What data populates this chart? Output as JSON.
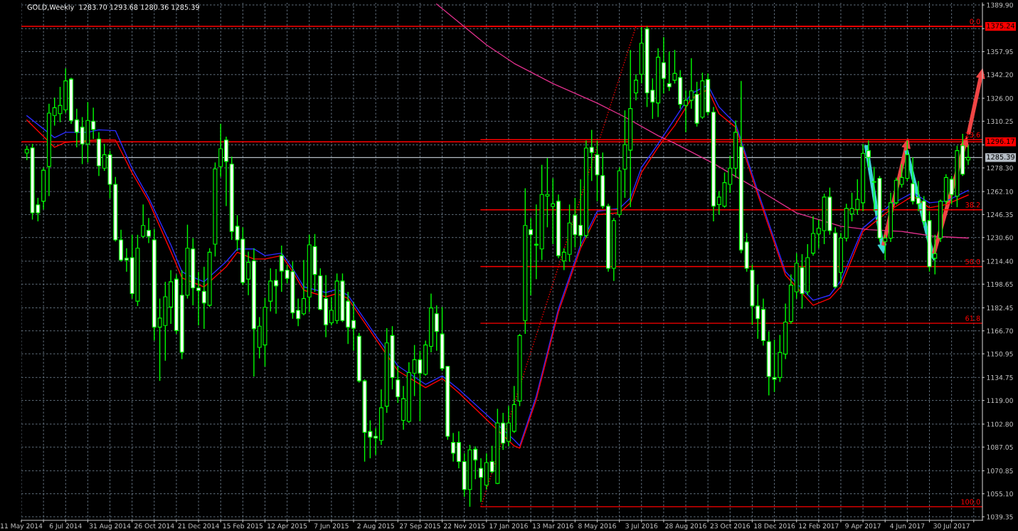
{
  "chart_data": {
    "type": "candlestick",
    "title": "GOLD,Weekly  1283.70 1293.68 1280.36 1285.39",
    "color": "#00ff00",
    "x": [
      "2014-05-18",
      "2014-05-25",
      "2014-06-01",
      "2014-06-08",
      "2014-06-15",
      "2014-06-22",
      "2014-06-29",
      "2014-07-06",
      "2014-07-13",
      "2014-07-20",
      "2014-07-27",
      "2014-08-03",
      "2014-08-10",
      "2014-08-17",
      "2014-08-24",
      "2014-08-31",
      "2014-09-07",
      "2014-09-14",
      "2014-09-21",
      "2014-09-28",
      "2014-10-05",
      "2014-10-12",
      "2014-10-19",
      "2014-10-26",
      "2014-11-02",
      "2014-11-09",
      "2014-11-16",
      "2014-11-23",
      "2014-11-30",
      "2014-12-07",
      "2014-12-14",
      "2014-12-21",
      "2014-12-28",
      "2015-01-04",
      "2015-01-11",
      "2015-01-18",
      "2015-01-25",
      "2015-02-01",
      "2015-02-08",
      "2015-02-15",
      "2015-02-22",
      "2015-03-01",
      "2015-03-08",
      "2015-03-15",
      "2015-03-22",
      "2015-03-29",
      "2015-04-05",
      "2015-04-12",
      "2015-04-19",
      "2015-04-26",
      "2015-05-03",
      "2015-05-10",
      "2015-05-17",
      "2015-05-24",
      "2015-05-31",
      "2015-06-07",
      "2015-06-14",
      "2015-06-21",
      "2015-06-28",
      "2015-07-05",
      "2015-07-12",
      "2015-07-19",
      "2015-07-26",
      "2015-08-02",
      "2015-08-09",
      "2015-08-16",
      "2015-08-23",
      "2015-08-30",
      "2015-09-06",
      "2015-09-13",
      "2015-09-20",
      "2015-09-27",
      "2015-10-04",
      "2015-10-11",
      "2015-10-18",
      "2015-10-25",
      "2015-11-01",
      "2015-11-08",
      "2015-11-15",
      "2015-11-22",
      "2015-11-29",
      "2015-12-06",
      "2015-12-13",
      "2015-12-20",
      "2015-12-27",
      "2016-01-03",
      "2016-01-10",
      "2016-01-17",
      "2016-01-24",
      "2016-01-31",
      "2016-02-07",
      "2016-02-14",
      "2016-02-21",
      "2016-02-28",
      "2016-03-06",
      "2016-03-13",
      "2016-03-20",
      "2016-03-27",
      "2016-04-03",
      "2016-04-10",
      "2016-04-17",
      "2016-04-24",
      "2016-05-01",
      "2016-05-08",
      "2016-05-15",
      "2016-05-22",
      "2016-05-29",
      "2016-06-05",
      "2016-06-12",
      "2016-06-19",
      "2016-06-26",
      "2016-07-03",
      "2016-07-10",
      "2016-07-17",
      "2016-07-24",
      "2016-07-31",
      "2016-08-07",
      "2016-08-14",
      "2016-08-21",
      "2016-08-28",
      "2016-09-04",
      "2016-09-11",
      "2016-09-18",
      "2016-09-25",
      "2016-10-02",
      "2016-10-09",
      "2016-10-16",
      "2016-10-23",
      "2016-10-30",
      "2016-11-06",
      "2016-11-13",
      "2016-11-20",
      "2016-11-27",
      "2016-12-04",
      "2016-12-11",
      "2016-12-18",
      "2016-12-25",
      "2017-01-01",
      "2017-01-08",
      "2017-01-15",
      "2017-01-22",
      "2017-01-29",
      "2017-02-05",
      "2017-02-12",
      "2017-02-19",
      "2017-02-26",
      "2017-03-05",
      "2017-03-12",
      "2017-03-19",
      "2017-03-26",
      "2017-04-02",
      "2017-04-09",
      "2017-04-16",
      "2017-04-23",
      "2017-04-30",
      "2017-05-07",
      "2017-05-14",
      "2017-05-21",
      "2017-05-28",
      "2017-06-04",
      "2017-06-11",
      "2017-06-18",
      "2017-06-25",
      "2017-07-02",
      "2017-07-09",
      "2017-07-16",
      "2017-07-23",
      "2017-07-30",
      "2017-08-06",
      "2017-08-13",
      "2017-08-20"
    ],
    "ohlc": [
      [
        1288.5,
        1293.5,
        1283.6,
        1291
      ],
      [
        1292,
        1294.7,
        1242.9,
        1247.5
      ],
      [
        1253,
        1257.8,
        1241.7,
        1247.5
      ],
      [
        1255.5,
        1278.6,
        1249.8,
        1276.7
      ],
      [
        1279.3,
        1322.3,
        1259,
        1315.8
      ],
      [
        1314.2,
        1326.4,
        1307.3,
        1319.5
      ],
      [
        1315.4,
        1333.8,
        1309.6,
        1321.1
      ],
      [
        1318.1,
        1346.5,
        1316,
        1337.9
      ],
      [
        1339.1,
        1340,
        1308.5,
        1310.8
      ],
      [
        1311.2,
        1318.8,
        1292.4,
        1302.7
      ],
      [
        1306.2,
        1313.1,
        1280.9,
        1294.7
      ],
      [
        1294.7,
        1323.4,
        1282,
        1310.8
      ],
      [
        1310.3,
        1319.5,
        1298.1,
        1304.6
      ],
      [
        1298.1,
        1302.7,
        1272.8,
        1279.7
      ],
      [
        1278.1,
        1294.7,
        1276.3,
        1287.3
      ],
      [
        1287.3,
        1290.1,
        1257.4,
        1267
      ],
      [
        1267,
        1272.1,
        1227.9,
        1229
      ],
      [
        1229,
        1236,
        1214.1,
        1215.2
      ],
      [
        1216.4,
        1223.3,
        1207.2,
        1215.2
      ],
      [
        1216.8,
        1232.5,
        1188.8,
        1192.2
      ],
      [
        1187,
        1232.5,
        1183.7,
        1223.3
      ],
      [
        1231.4,
        1253.2,
        1230.2,
        1238.9
      ],
      [
        1235.5,
        1244,
        1226.8,
        1231.4
      ],
      [
        1229,
        1236.6,
        1160,
        1169.2
      ],
      [
        1169.2,
        1188.8,
        1132.4,
        1175.4
      ],
      [
        1170.4,
        1200.3,
        1146.2,
        1190
      ],
      [
        1183,
        1208.3,
        1171.5,
        1200.3
      ],
      [
        1202.1,
        1205.3,
        1164.6,
        1166.9
      ],
      [
        1191.1,
        1208.3,
        1147.3,
        1152
      ],
      [
        1191.1,
        1239.4,
        1188.8,
        1223.3
      ],
      [
        1222.8,
        1230.2,
        1184.2,
        1196.1
      ],
      [
        1196.1,
        1207.2,
        1170.4,
        1194.3
      ],
      [
        1193.8,
        1210.6,
        1168.1,
        1185.8
      ],
      [
        1184.2,
        1223.3,
        1183,
        1220.5
      ],
      [
        1226.1,
        1282,
        1217.6,
        1277.6
      ],
      [
        1279.2,
        1308.5,
        1272.1,
        1291.4
      ],
      [
        1297.4,
        1299.7,
        1252.1,
        1282.7
      ],
      [
        1280.9,
        1286,
        1229,
        1234.8
      ],
      [
        1238.3,
        1245.9,
        1221.5,
        1229
      ],
      [
        1229.5,
        1237.6,
        1198,
        1199.8
      ],
      [
        1202.1,
        1221,
        1191.1,
        1213.6
      ],
      [
        1214.6,
        1223.3,
        1135.4,
        1168.1
      ],
      [
        1155.4,
        1176.1,
        1147.8,
        1169.9
      ],
      [
        1157,
        1189.3,
        1142.3,
        1182.8
      ],
      [
        1187,
        1209.5,
        1180,
        1200.8
      ],
      [
        1201.2,
        1209,
        1178.4,
        1197.5
      ],
      [
        1218.2,
        1225.1,
        1193.4,
        1207.6
      ],
      [
        1208.3,
        1211.8,
        1199.1,
        1202.6
      ],
      [
        1207.2,
        1214.1,
        1175,
        1179.1
      ],
      [
        1180.7,
        1188.8,
        1169.9,
        1175
      ],
      [
        1178.4,
        1215.2,
        1177.3,
        1188.8
      ],
      [
        1189.9,
        1232.5,
        1179.6,
        1225.6
      ],
      [
        1224.4,
        1233,
        1193.4,
        1205.3
      ],
      [
        1204.4,
        1209.5,
        1180.7,
        1181.4
      ],
      [
        1188.8,
        1204.9,
        1162.3,
        1170.8
      ],
      [
        1172.2,
        1189.9,
        1170.4,
        1180.7
      ],
      [
        1173.8,
        1206,
        1171.5,
        1200.8
      ],
      [
        1200.8,
        1206,
        1172.7,
        1173.8
      ],
      [
        1187,
        1193.4,
        1157.7,
        1169.2
      ],
      [
        1173.8,
        1186.5,
        1153.1,
        1168.5
      ],
      [
        1163,
        1165.3,
        1131.2,
        1132.4
      ],
      [
        1132.4,
        1133.5,
        1077.1,
        1097.2
      ],
      [
        1097.8,
        1105.4,
        1079.4,
        1093.9
      ],
      [
        1094.4,
        1100.2,
        1081.7,
        1093.3
      ],
      [
        1091.6,
        1126.6,
        1088.6,
        1114
      ],
      [
        1115.1,
        1168.5,
        1110.5,
        1158.4
      ],
      [
        1163.5,
        1169.9,
        1126.6,
        1134.7
      ],
      [
        1133.1,
        1142.7,
        1117.4,
        1121.5
      ],
      [
        1105.4,
        1128.9,
        1099,
        1120.2
      ],
      [
        1104.7,
        1145.1,
        1103.6,
        1138.1
      ],
      [
        1137.7,
        1157,
        1122,
        1146.9
      ],
      [
        1146.9,
        1153.1,
        1104.7,
        1137.7
      ],
      [
        1137,
        1160,
        1136,
        1157
      ],
      [
        1156.1,
        1192.2,
        1152,
        1182.4
      ],
      [
        1178.4,
        1184.2,
        1153.1,
        1166.2
      ],
      [
        1164.6,
        1183,
        1139.3,
        1140.9
      ],
      [
        1142.3,
        1142.7,
        1092.1,
        1094.4
      ],
      [
        1090.2,
        1096.7,
        1077.1,
        1082.9
      ],
      [
        1090.2,
        1097.8,
        1072.5,
        1077.1
      ],
      [
        1077.1,
        1082.9,
        1053,
        1058
      ],
      [
        1058,
        1088.6,
        1046.2,
        1085.2
      ],
      [
        1085.6,
        1087.5,
        1065,
        1078.3
      ],
      [
        1072.5,
        1079.4,
        1049.5,
        1066.3
      ],
      [
        1061,
        1082.9,
        1058,
        1076.4
      ],
      [
        1077.1,
        1088,
        1069.1,
        1070.2
      ],
      [
        1062.2,
        1113.3,
        1061.7,
        1103.6
      ],
      [
        1103.6,
        1110.5,
        1085.2,
        1089.8
      ],
      [
        1091,
        1115.1,
        1087.5,
        1103.6
      ],
      [
        1097.9,
        1128.9,
        1096.7,
        1116.2
      ],
      [
        1118.6,
        1164.6,
        1115.1,
        1163.5
      ],
      [
        1173.8,
        1264.3,
        1164.6,
        1238.9
      ],
      [
        1236,
        1244,
        1191.1,
        1232.5
      ],
      [
        1225.4,
        1253.2,
        1202.1,
        1226
      ],
      [
        1222.8,
        1280.4,
        1215.2,
        1260.1
      ],
      [
        1259,
        1285,
        1237.6,
        1260.1
      ],
      [
        1251.9,
        1271.2,
        1226.1,
        1253.7
      ],
      [
        1255.5,
        1260.1,
        1216.4,
        1218.2
      ],
      [
        1214.6,
        1223.3,
        1208.3,
        1220.5
      ],
      [
        1219.1,
        1253.2,
        1214.1,
        1240.6
      ],
      [
        1245.9,
        1257.8,
        1223.8,
        1232.5
      ],
      [
        1239,
        1270.5,
        1224.5,
        1232
      ],
      [
        1232,
        1297,
        1230.2,
        1291.9
      ],
      [
        1292.4,
        1304.3,
        1269.3,
        1288.9
      ],
      [
        1287.3,
        1297,
        1255.5,
        1273.5
      ],
      [
        1273,
        1288.9,
        1250.5,
        1252.1
      ],
      [
        1252.1,
        1253.7,
        1207.2,
        1209.5
      ],
      [
        1209.5,
        1244,
        1200.8,
        1242.2
      ],
      [
        1246.3,
        1278.6,
        1244.5,
        1276.3
      ],
      [
        1277.4,
        1317.7,
        1257.8,
        1294.2
      ],
      [
        1290.5,
        1359.1,
        1251.4,
        1318.9
      ],
      [
        1329.7,
        1342.5,
        1324.6,
        1338.4
      ],
      [
        1342.5,
        1374.8,
        1336.1,
        1363.7
      ],
      [
        1373.4,
        1375.24,
        1320,
        1329.7
      ],
      [
        1331.5,
        1339.6,
        1311.9,
        1323.4
      ],
      [
        1322.8,
        1360.3,
        1313.1,
        1354.1
      ],
      [
        1350.4,
        1367.9,
        1329.2,
        1339.6
      ],
      [
        1336.1,
        1358,
        1331,
        1333.8
      ],
      [
        1338.4,
        1359.1,
        1336.1,
        1343
      ],
      [
        1340.2,
        1345.3,
        1318.8,
        1321.8
      ],
      [
        1321.1,
        1331.5,
        1302.7,
        1324.6
      ],
      [
        1324.6,
        1353.4,
        1318.8,
        1331
      ],
      [
        1328.7,
        1337.3,
        1306.6,
        1308.9
      ],
      [
        1313.1,
        1343.5,
        1311.9,
        1337.9
      ],
      [
        1338.9,
        1343,
        1314.2,
        1316.5
      ],
      [
        1316.5,
        1320,
        1241.7,
        1252.1
      ],
      [
        1253.2,
        1262.4,
        1246.3,
        1258.3
      ],
      [
        1252.1,
        1275.1,
        1251,
        1268.2
      ],
      [
        1267,
        1286.6,
        1261.3,
        1278.1
      ],
      [
        1278.1,
        1310.8,
        1271.7,
        1302.7
      ],
      [
        1292.8,
        1337.9,
        1219.9,
        1222.1
      ],
      [
        1227.5,
        1233.7,
        1207.2,
        1209.5
      ],
      [
        1208.3,
        1212.2,
        1170.8,
        1183.7
      ],
      [
        1183.7,
        1198.4,
        1161.2,
        1175
      ],
      [
        1181.4,
        1188.8,
        1156.6,
        1160
      ],
      [
        1159.3,
        1166.2,
        1122.5,
        1135.4
      ],
      [
        1134.7,
        1160.7,
        1124.8,
        1133.5
      ],
      [
        1134.7,
        1163.9,
        1131.7,
        1151.9
      ],
      [
        1150.8,
        1185.3,
        1147.3,
        1172.7
      ],
      [
        1173.1,
        1205.3,
        1171.5,
        1198
      ],
      [
        1193.4,
        1219.9,
        1188.8,
        1213
      ],
      [
        1210,
        1219.2,
        1181.9,
        1192.2
      ],
      [
        1193.4,
        1226.1,
        1191.1,
        1216.8
      ],
      [
        1219.9,
        1245.2,
        1218.2,
        1233.4
      ],
      [
        1233,
        1242.9,
        1223.3,
        1236.9
      ],
      [
        1235.3,
        1260.6,
        1226.1,
        1258.3
      ],
      [
        1258.3,
        1264.8,
        1232.5,
        1235.3
      ],
      [
        1233.7,
        1237.6,
        1195.7,
        1196.8
      ],
      [
        1206.7,
        1233.7,
        1199.1,
        1230.2
      ],
      [
        1230.2,
        1253.7,
        1227.9,
        1250.5
      ],
      [
        1246.8,
        1261.3,
        1241.7,
        1250.5
      ],
      [
        1249.8,
        1270.5,
        1246.3,
        1256.7
      ],
      [
        1254.4,
        1294.7,
        1248.6,
        1288.2
      ],
      [
        1290.1,
        1297,
        1278.6,
        1285.5
      ],
      [
        1268.9,
        1279,
        1248.6,
        1268.5
      ],
      [
        1271.2,
        1272.8,
        1227.9,
        1230.2
      ],
      [
        1227.9,
        1232.5,
        1215.2,
        1230.2
      ],
      [
        1230.2,
        1261.3,
        1227.5,
        1254.4
      ],
      [
        1254.4,
        1271.7,
        1253.2,
        1269.8
      ],
      [
        1267,
        1280.9,
        1264.8,
        1271.7
      ],
      [
        1271.2,
        1297,
        1269.3,
        1287.3
      ],
      [
        1267.5,
        1285.5,
        1253.2,
        1255.5
      ],
      [
        1257.8,
        1269.3,
        1248.6,
        1253.7
      ],
      [
        1255.5,
        1259,
        1238.3,
        1241.7
      ],
      [
        1242.2,
        1248.6,
        1207.2,
        1210.6
      ],
      [
        1216.4,
        1232.5,
        1205.3,
        1219.5
      ],
      [
        1230.2,
        1256.7,
        1227.5,
        1255.5
      ],
      [
        1255.5,
        1274,
        1253.2,
        1271.7
      ],
      [
        1270.5,
        1272.8,
        1253.2,
        1260.1
      ],
      [
        1259,
        1293.5,
        1251.4,
        1290.1
      ],
      [
        1293.5,
        1301.6,
        1272.8,
        1274
      ],
      [
        1283.7,
        1293.68,
        1280.36,
        1285.39
      ]
    ],
    "series": [
      {
        "type": "line",
        "color": "#2b2bff",
        "x": [
          "2014-05-18",
          "2014-06-22",
          "2014-07-06",
          "2014-08-03",
          "2014-08-17",
          "2014-09-07",
          "2014-09-28",
          "2014-10-19",
          "2014-11-16",
          "2014-11-30",
          "2014-12-07",
          "2014-12-28",
          "2015-01-25",
          "2015-02-08",
          "2015-03-01",
          "2015-03-15",
          "2015-04-05",
          "2015-04-19",
          "2015-05-03",
          "2015-05-31",
          "2015-06-14",
          "2015-06-28",
          "2015-08-02",
          "2015-08-30",
          "2015-10-04",
          "2015-10-25",
          "2015-11-15",
          "2015-12-27",
          "2016-01-24",
          "2016-01-31",
          "2016-02-21",
          "2016-03-20",
          "2016-04-17",
          "2016-05-08",
          "2016-06-05",
          "2016-06-19",
          "2016-07-03",
          "2016-07-24",
          "2016-08-14",
          "2016-09-04",
          "2016-09-25",
          "2016-10-09",
          "2016-10-30",
          "2016-11-27",
          "2017-01-01",
          "2017-02-05",
          "2017-02-26",
          "2017-03-12",
          "2017-04-09",
          "2017-05-14",
          "2017-06-11",
          "2017-07-02",
          "2017-07-23",
          "2017-08-20"
        ],
        "values": [
          1314,
          1299,
          1302.7,
          1302.7,
          1304.4,
          1303.8,
          1278,
          1257.8,
          1225.6,
          1207.2,
          1205,
          1200.3,
          1214.1,
          1222.8,
          1222.8,
          1218.2,
          1219.9,
          1209.5,
          1196.8,
          1192.9,
          1195.2,
          1191,
          1163.5,
          1142.7,
          1130,
          1135.8,
          1126.6,
          1105.9,
          1092,
          1088,
          1122,
          1181.9,
          1225.6,
          1248.6,
          1250.5,
          1257.8,
          1278.6,
          1294.7,
          1311.9,
          1329.2,
          1335,
          1320,
          1308.5,
          1262.4,
          1207.2,
          1187.6,
          1191.1,
          1201,
          1237.1,
          1253.2,
          1261.3,
          1254.4,
          1255.5,
          1262.9
        ]
      },
      {
        "type": "line",
        "color": "#ff0000",
        "x": [
          "2014-05-18",
          "2014-06-22",
          "2014-07-06",
          "2014-08-03",
          "2014-08-17",
          "2014-09-07",
          "2014-09-28",
          "2014-10-19",
          "2014-11-16",
          "2014-11-30",
          "2014-12-07",
          "2014-12-28",
          "2015-01-25",
          "2015-02-08",
          "2015-03-01",
          "2015-03-15",
          "2015-04-05",
          "2015-04-19",
          "2015-05-03",
          "2015-05-31",
          "2015-06-14",
          "2015-06-28",
          "2015-08-02",
          "2015-08-30",
          "2015-10-04",
          "2015-10-25",
          "2015-11-15",
          "2015-12-27",
          "2016-01-24",
          "2016-01-31",
          "2016-02-21",
          "2016-03-20",
          "2016-04-17",
          "2016-05-08",
          "2016-06-05",
          "2016-06-19",
          "2016-07-03",
          "2016-07-24",
          "2016-08-14",
          "2016-09-04",
          "2016-09-25",
          "2016-10-09",
          "2016-10-30",
          "2016-11-27",
          "2017-01-01",
          "2017-02-05",
          "2017-02-26",
          "2017-03-12",
          "2017-04-09",
          "2017-05-14",
          "2017-06-11",
          "2017-07-02",
          "2017-07-23",
          "2017-08-20"
        ],
        "values": [
          1311,
          1292.4,
          1295.8,
          1297,
          1297.5,
          1297.4,
          1275,
          1255.5,
          1221,
          1203,
          1201.4,
          1196.8,
          1210.6,
          1220.5,
          1215.9,
          1215.9,
          1218.2,
          1207.2,
          1194.5,
          1190,
          1192.2,
          1188.8,
          1161.2,
          1139.3,
          1127.8,
          1134,
          1124.3,
          1102.4,
          1087.9,
          1086.3,
          1119.7,
          1179.6,
          1223.3,
          1246.3,
          1247.5,
          1254.4,
          1275.1,
          1292.4,
          1307.3,
          1325.7,
          1332,
          1315.4,
          1306.2,
          1260.1,
          1204.9,
          1184.2,
          1188.8,
          1197,
          1234.8,
          1249.8,
          1259,
          1251,
          1253.2,
          1259.7
        ]
      },
      {
        "type": "line",
        "color": "#e0308c",
        "x": [
          "2015-10-18",
          "2015-12-20",
          "2016-01-24",
          "2016-03-13",
          "2016-05-08",
          "2016-06-12",
          "2016-07-24",
          "2016-08-14",
          "2016-10-02",
          "2016-11-27",
          "2017-01-15",
          "2017-03-12",
          "2017-04-16",
          "2017-05-28",
          "2017-07-09",
          "2017-08-20"
        ],
        "values": [
          1390.5,
          1362.6,
          1349.9,
          1336.1,
          1322.7,
          1313.1,
          1300.4,
          1295.1,
          1281.3,
          1263.6,
          1247.5,
          1238.3,
          1236,
          1234.8,
          1231.4,
          1230.2
        ]
      },
      {
        "type": "line",
        "color": "#ff0000",
        "line_style": "dotted",
        "x": [
          "2015-12-13",
          "2016-06-26"
        ],
        "values": [
          1046.2,
          1375.2
        ]
      },
      {
        "type": "line",
        "color": "#ff0000",
        "x": [
          "2015-12-13",
          "2017-09-07"
        ],
        "values": [
          1375.2,
          1375.2
        ]
      },
      {
        "type": "line",
        "color": "#ff0000",
        "x": [
          "2015-12-13",
          "2017-09-07"
        ],
        "values": [
          1297.6,
          1297.6
        ]
      },
      {
        "type": "line",
        "color": "#ff0000",
        "x": [
          "2015-12-13",
          "2017-09-07"
        ],
        "values": [
          1249.6,
          1249.6
        ]
      },
      {
        "type": "line",
        "color": "#ff0000",
        "x": [
          "2015-12-13",
          "2017-09-07"
        ],
        "values": [
          1210.7,
          1210.7
        ]
      },
      {
        "type": "line",
        "color": "#ff0000",
        "x": [
          "2015-12-13",
          "2017-09-07"
        ],
        "values": [
          1171.9,
          1171.9
        ]
      },
      {
        "type": "line",
        "color": "#ff0000",
        "x": [
          "2015-12-13",
          "2017-09-07"
        ],
        "values": [
          1046.2,
          1046.2
        ]
      }
    ],
    "ref_lines": [
      {
        "axis": "y",
        "value": 1375.24,
        "label": "1375.24",
        "color": "#ff0000"
      },
      {
        "axis": "y",
        "value": 1296.17,
        "label": "1296.17",
        "color": "#ff0000"
      },
      {
        "axis": "y",
        "value": 1285.39,
        "label": "1285.39",
        "color": "#b4bcc4"
      }
    ],
    "annotations": [
      {
        "text": "0.0",
        "x": "2017-09-07",
        "y": 1375.2
      },
      {
        "text": "23.6",
        "x": "2017-09-07",
        "y": 1297.6
      },
      {
        "text": "38.2",
        "x": "2017-09-07",
        "y": 1249.6
      },
      {
        "text": "50.0",
        "x": "2017-09-07",
        "y": 1210.7
      },
      {
        "text": "61.8",
        "x": "2017-09-07",
        "y": 1171.9
      },
      {
        "text": "100.0",
        "x": "2017-09-07",
        "y": 1046.2
      }
    ],
    "xlim": [
      "2014-05-11",
      "2017-09-07"
    ],
    "xticks": [
      {
        "value": "2014-05-11",
        "label": "11 May 2014"
      },
      {
        "value": "2014-06-08",
        "label": null
      },
      {
        "value": "2014-07-06",
        "label": "6 Jul 2014"
      },
      {
        "value": "2014-08-03",
        "label": null
      },
      {
        "value": "2014-08-31",
        "label": "31 Aug 2014"
      },
      {
        "value": "2014-09-28",
        "label": null
      },
      {
        "value": "2014-10-26",
        "label": "26 Oct 2014"
      },
      {
        "value": "2014-11-23",
        "label": null
      },
      {
        "value": "2014-12-21",
        "label": "21 Dec 2014"
      },
      {
        "value": "2015-01-18",
        "label": null
      },
      {
        "value": "2015-02-15",
        "label": "15 Feb 2015"
      },
      {
        "value": "2015-03-15",
        "label": null
      },
      {
        "value": "2015-04-12",
        "label": "12 Apr 2015"
      },
      {
        "value": "2015-05-10",
        "label": null
      },
      {
        "value": "2015-06-07",
        "label": "7 Jun 2015"
      },
      {
        "value": "2015-07-05",
        "label": null
      },
      {
        "value": "2015-08-02",
        "label": "2 Aug 2015"
      },
      {
        "value": "2015-08-30",
        "label": null
      },
      {
        "value": "2015-09-27",
        "label": "27 Sep 2015"
      },
      {
        "value": "2015-10-25",
        "label": null
      },
      {
        "value": "2015-11-22",
        "label": "22 Nov 2015"
      },
      {
        "value": "2015-12-20",
        "label": null
      },
      {
        "value": "2016-01-17",
        "label": "17 Jan 2016"
      },
      {
        "value": "2016-02-14",
        "label": null
      },
      {
        "value": "2016-03-13",
        "label": "13 Mar 2016"
      },
      {
        "value": "2016-04-10",
        "label": null
      },
      {
        "value": "2016-05-08",
        "label": "8 May 2016"
      },
      {
        "value": "2016-06-05",
        "label": null
      },
      {
        "value": "2016-07-03",
        "label": "3 Jul 2016"
      },
      {
        "value": "2016-07-31",
        "label": null
      },
      {
        "value": "2016-08-28",
        "label": "28 Aug 2016"
      },
      {
        "value": "2016-09-25",
        "label": null
      },
      {
        "value": "2016-10-23",
        "label": "23 Oct 2016"
      },
      {
        "value": "2016-11-20",
        "label": null
      },
      {
        "value": "2016-12-18",
        "label": "18 Dec 2016"
      },
      {
        "value": "2017-01-15",
        "label": null
      },
      {
        "value": "2017-02-12",
        "label": "12 Feb 2017"
      },
      {
        "value": "2017-03-12",
        "label": null
      },
      {
        "value": "2017-04-09",
        "label": "9 Apr 2017"
      },
      {
        "value": "2017-05-07",
        "label": null
      },
      {
        "value": "2017-06-04",
        "label": "4 Jun 2017"
      },
      {
        "value": "2017-07-02",
        "label": null
      },
      {
        "value": "2017-07-30",
        "label": "30 Jul 2017"
      },
      {
        "value": "2017-08-27",
        "label": null
      }
    ],
    "ylim": [
      1036.9,
      1391.35
    ],
    "yticks": [
      {
        "value": 1389.9,
        "label": "1389.90"
      },
      {
        "value": 1373.7,
        "label": null
      },
      {
        "value": 1357.95,
        "label": "1357.95"
      },
      {
        "value": 1342.2,
        "label": "1342.20"
      },
      {
        "value": 1326.0,
        "label": "1326.00"
      },
      {
        "value": 1310.25,
        "label": "1310.25"
      },
      {
        "value": 1294.05,
        "label": null
      },
      {
        "value": 1278.3,
        "label": "1278.30"
      },
      {
        "value": 1262.1,
        "label": "1262.10"
      },
      {
        "value": 1246.35,
        "label": "1246.35"
      },
      {
        "value": 1230.6,
        "label": "1230.60"
      },
      {
        "value": 1214.4,
        "label": "1214.40"
      },
      {
        "value": 1198.65,
        "label": "1198.65"
      },
      {
        "value": 1182.45,
        "label": "1182.45"
      },
      {
        "value": 1166.7,
        "label": "1166.70"
      },
      {
        "value": 1150.95,
        "label": "1150.95"
      },
      {
        "value": 1134.75,
        "label": "1134.75"
      },
      {
        "value": 1119.0,
        "label": "1119.00"
      },
      {
        "value": 1102.8,
        "label": "1102.80"
      },
      {
        "value": 1087.05,
        "label": "1087.05"
      },
      {
        "value": 1070.85,
        "label": "1070.85"
      },
      {
        "value": 1055.1,
        "label": "1055.10"
      },
      {
        "value": 1039.35,
        "label": "1039.35"
      }
    ],
    "grid": true
  }
}
